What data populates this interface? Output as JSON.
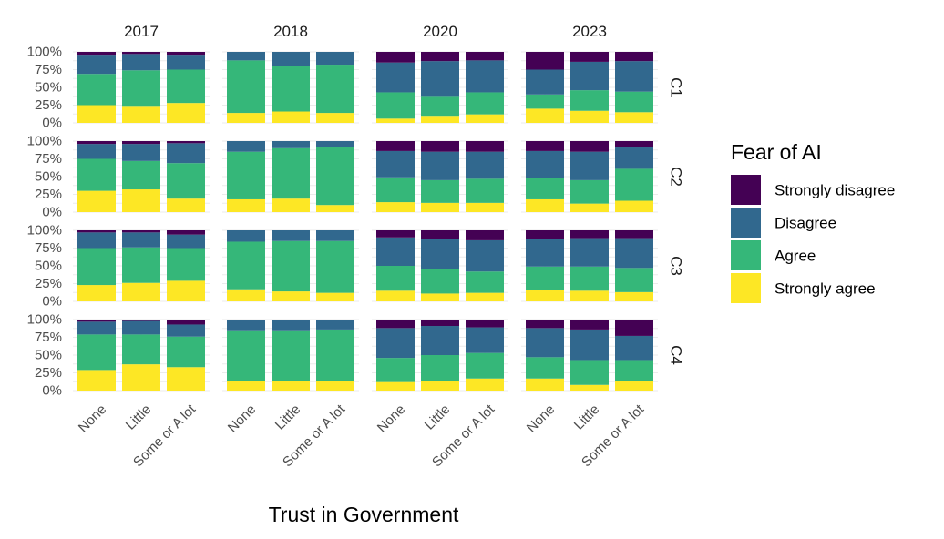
{
  "chart_data": {
    "type": "bar",
    "stacked": true,
    "normalized": true,
    "xlabel": "Trust in Government",
    "ylabel": "",
    "ylim": [
      0,
      1
    ],
    "ytick_labels": [
      "0%",
      "25%",
      "50%",
      "75%",
      "100%"
    ],
    "categories": [
      "None",
      "Little",
      "Some or A lot"
    ],
    "facet_columns": [
      "2017",
      "2018",
      "2020",
      "2023"
    ],
    "facet_rows": [
      "C1",
      "C2",
      "C3",
      "C4"
    ],
    "legend": {
      "title": "Fear of AI",
      "placement": "right",
      "entries": [
        {
          "name": "Strongly disagree",
          "color": "#440154"
        },
        {
          "name": "Disagree",
          "color": "#31688E"
        },
        {
          "name": "Agree",
          "color": "#35B779"
        },
        {
          "name": "Strongly agree",
          "color": "#FDE725"
        }
      ]
    },
    "stack_order_bottom_to_top": [
      "Strongly agree",
      "Agree",
      "Disagree",
      "Strongly disagree"
    ],
    "panels": {
      "C1": {
        "2017": [
          [
            0.25,
            0.44,
            0.27,
            0.04
          ],
          [
            0.24,
            0.5,
            0.23,
            0.03
          ],
          [
            0.28,
            0.47,
            0.21,
            0.04
          ]
        ],
        "2018": [
          [
            0.14,
            0.74,
            0.12,
            0.0
          ],
          [
            0.16,
            0.64,
            0.2,
            0.0
          ],
          [
            0.14,
            0.68,
            0.18,
            0.0
          ]
        ],
        "2020": [
          [
            0.06,
            0.37,
            0.42,
            0.15
          ],
          [
            0.1,
            0.28,
            0.49,
            0.13
          ],
          [
            0.12,
            0.31,
            0.45,
            0.12
          ]
        ],
        "2023": [
          [
            0.2,
            0.2,
            0.35,
            0.25
          ],
          [
            0.17,
            0.29,
            0.4,
            0.14
          ],
          [
            0.15,
            0.29,
            0.43,
            0.13
          ]
        ]
      },
      "C2": {
        "2017": [
          [
            0.3,
            0.45,
            0.21,
            0.04
          ],
          [
            0.32,
            0.4,
            0.24,
            0.04
          ],
          [
            0.19,
            0.5,
            0.28,
            0.03
          ]
        ],
        "2018": [
          [
            0.18,
            0.67,
            0.15,
            0.0
          ],
          [
            0.19,
            0.71,
            0.1,
            0.0
          ],
          [
            0.1,
            0.82,
            0.08,
            0.0
          ]
        ],
        "2020": [
          [
            0.14,
            0.35,
            0.37,
            0.14
          ],
          [
            0.13,
            0.32,
            0.4,
            0.15
          ],
          [
            0.13,
            0.34,
            0.38,
            0.15
          ]
        ],
        "2023": [
          [
            0.18,
            0.3,
            0.38,
            0.14
          ],
          [
            0.12,
            0.33,
            0.4,
            0.15
          ],
          [
            0.16,
            0.45,
            0.3,
            0.09
          ]
        ]
      },
      "C3": {
        "2017": [
          [
            0.23,
            0.52,
            0.22,
            0.03
          ],
          [
            0.26,
            0.5,
            0.21,
            0.03
          ],
          [
            0.29,
            0.46,
            0.19,
            0.06
          ]
        ],
        "2018": [
          [
            0.17,
            0.67,
            0.16,
            0.0
          ],
          [
            0.14,
            0.71,
            0.15,
            0.0
          ],
          [
            0.12,
            0.73,
            0.15,
            0.0
          ]
        ],
        "2020": [
          [
            0.15,
            0.35,
            0.4,
            0.1
          ],
          [
            0.11,
            0.34,
            0.43,
            0.12
          ],
          [
            0.12,
            0.3,
            0.44,
            0.14
          ]
        ],
        "2023": [
          [
            0.16,
            0.33,
            0.39,
            0.12
          ],
          [
            0.15,
            0.34,
            0.4,
            0.11
          ],
          [
            0.13,
            0.34,
            0.42,
            0.11
          ]
        ]
      },
      "C4": {
        "2017": [
          [
            0.29,
            0.5,
            0.18,
            0.03
          ],
          [
            0.37,
            0.42,
            0.19,
            0.02
          ],
          [
            0.33,
            0.43,
            0.17,
            0.07
          ]
        ],
        "2018": [
          [
            0.14,
            0.71,
            0.15,
            0.0
          ],
          [
            0.13,
            0.72,
            0.15,
            0.0
          ],
          [
            0.14,
            0.72,
            0.14,
            0.0
          ]
        ],
        "2020": [
          [
            0.12,
            0.34,
            0.42,
            0.12
          ],
          [
            0.14,
            0.36,
            0.41,
            0.09
          ],
          [
            0.17,
            0.36,
            0.36,
            0.11
          ]
        ],
        "2023": [
          [
            0.17,
            0.3,
            0.41,
            0.12
          ],
          [
            0.08,
            0.35,
            0.43,
            0.14
          ],
          [
            0.13,
            0.3,
            0.34,
            0.23
          ]
        ]
      }
    }
  }
}
